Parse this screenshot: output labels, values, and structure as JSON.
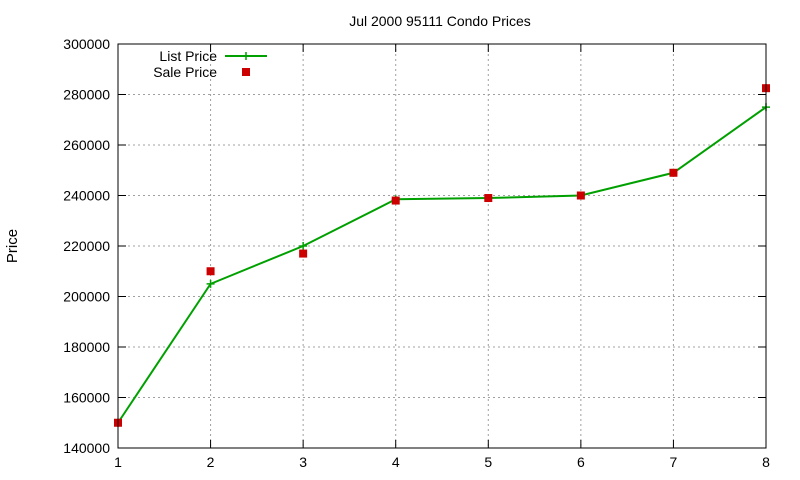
{
  "chart_data": {
    "type": "line",
    "title": "Jul 2000 95111 Condo Prices",
    "xlabel": "",
    "ylabel": "Price",
    "x": [
      1,
      2,
      3,
      4,
      5,
      6,
      7,
      8
    ],
    "xlim": [
      1,
      8
    ],
    "ylim": [
      140000,
      300000
    ],
    "xticks": [
      "1",
      "2",
      "3",
      "4",
      "5",
      "6",
      "7",
      "8"
    ],
    "yticks": [
      "140000",
      "160000",
      "180000",
      "200000",
      "220000",
      "240000",
      "260000",
      "280000",
      "300000"
    ],
    "grid": true,
    "legend_position": "top-left",
    "series": [
      {
        "name": "List Price",
        "style": "line-with-plus-markers",
        "color": "#00a000",
        "values": [
          150000,
          205000,
          220000,
          238500,
          239000,
          240000,
          249000,
          275000
        ]
      },
      {
        "name": "Sale Price",
        "style": "square-points",
        "color": "#cc0000",
        "values": [
          150000,
          210000,
          217000,
          238000,
          239000,
          240000,
          249000,
          282500
        ]
      }
    ]
  }
}
